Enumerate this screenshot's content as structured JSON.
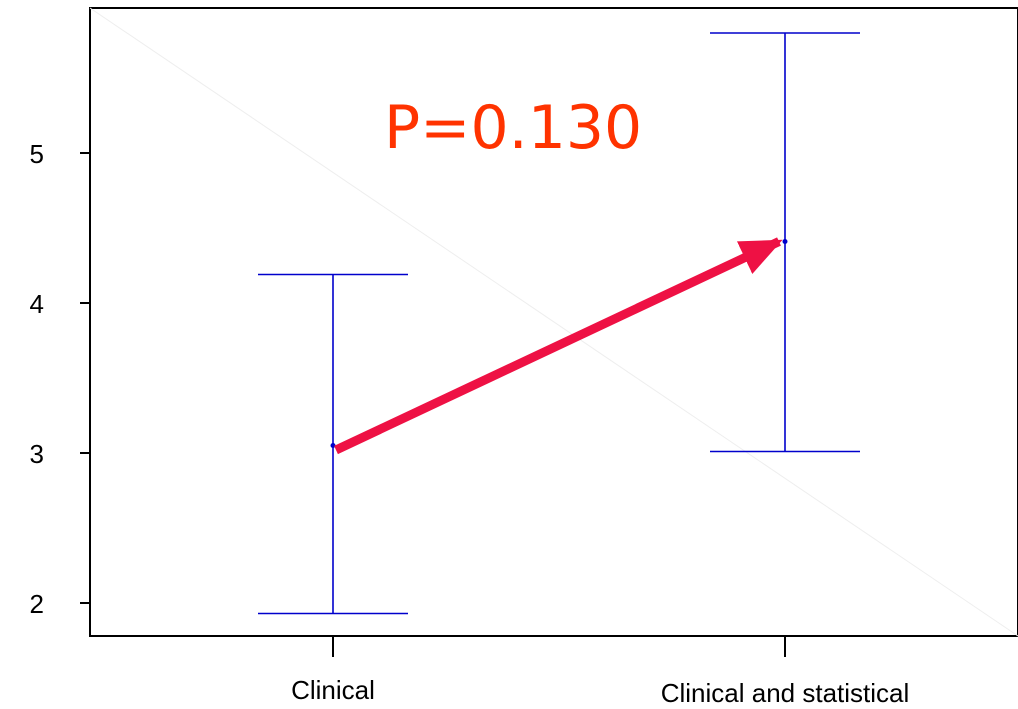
{
  "chart_data": {
    "type": "interval",
    "categories": [
      "Clinical",
      "Clinical and statistical"
    ],
    "series": [
      {
        "points": [
          {
            "category": "Clinical",
            "mean": 3.05,
            "lower": 1.93,
            "upper": 4.19
          },
          {
            "category": "Clinical and statistical",
            "mean": 4.41,
            "lower": 3.01,
            "upper": 5.8
          }
        ]
      }
    ],
    "ylim": [
      1.78,
      6.0
    ],
    "yticks": [
      2,
      3,
      4,
      5
    ],
    "grid": false,
    "interval_color": "#0000cc",
    "annotation": {
      "text": "P=0.130",
      "color": "#ff3300",
      "arrow": {
        "from": {
          "category": "Clinical",
          "value": 3.02
        },
        "to": {
          "category": "Clinical and statistical",
          "value": 4.41
        },
        "color": "#ee1144"
      }
    }
  }
}
